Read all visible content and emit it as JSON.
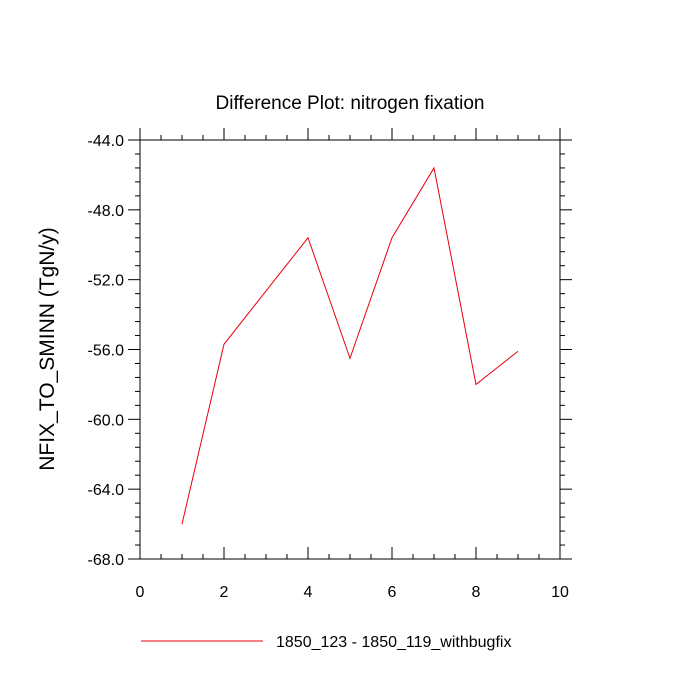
{
  "chart_data": {
    "type": "line",
    "title": "Difference Plot: nitrogen fixation",
    "ylabel": "NFIX_TO_SMINN  (TgN/y)",
    "xlabel": "",
    "xlim": [
      0,
      10
    ],
    "ylim": [
      -68.0,
      -44.0
    ],
    "xticks": [
      0,
      2,
      4,
      6,
      8,
      10
    ],
    "xtick_labels": [
      "0",
      "2",
      "4",
      "6",
      "8",
      "10"
    ],
    "yticks": [
      -68.0,
      -64.0,
      -60.0,
      -56.0,
      -52.0,
      -48.0,
      -44.0
    ],
    "ytick_labels": [
      "-68.0",
      "-64.0",
      "-60.0",
      "-56.0",
      "-52.0",
      "-48.0",
      "-44.0"
    ],
    "grid": false,
    "legend_position": "bottom",
    "series": [
      {
        "name": "1850_123 - 1850_119_withbugfix",
        "color": "#e8000b",
        "x": [
          1,
          2,
          4,
          5,
          6,
          7,
          8,
          9
        ],
        "y": [
          -66.0,
          -55.7,
          -49.6,
          -56.5,
          -49.6,
          -45.6,
          -58.0,
          -56.1
        ]
      }
    ]
  }
}
